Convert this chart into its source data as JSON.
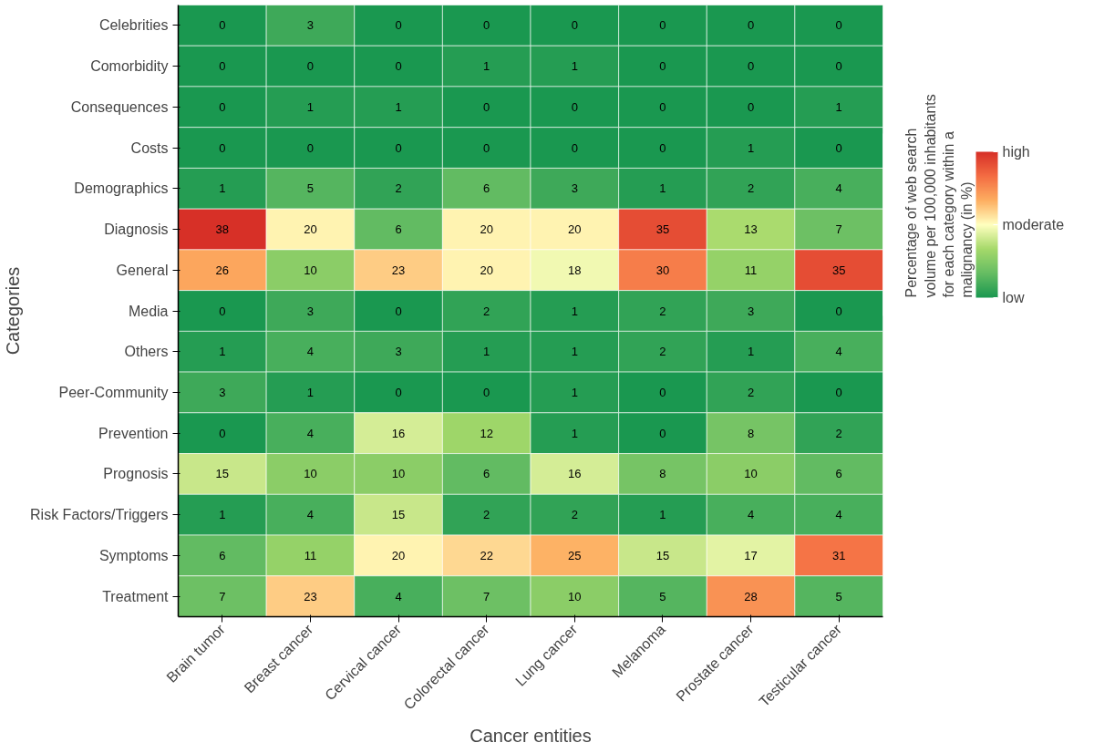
{
  "chart_data": {
    "type": "heatmap",
    "xlabel": "Cancer entities",
    "ylabel": "Categories",
    "clabel": "Percentage of web search volume per 100,000 inhabitants for each category within a malignancy (in %)",
    "categories": [
      "Brain tumor",
      "Breast cancer",
      "Cervical cancer",
      "Colorectal cancer",
      "Lung cancer",
      "Melanoma",
      "Prostate cancer",
      "Testicular cancer"
    ],
    "y_categories": [
      "Celebrities",
      "Comorbidity",
      "Consequences",
      "Costs",
      "Demographics",
      "Diagnosis",
      "General",
      "Media",
      "Others",
      "Peer-Community",
      "Prevention",
      "Prognosis",
      "Risk Factors/Triggers",
      "Symptoms",
      "Treatment"
    ],
    "cells": [
      [
        0,
        3,
        0,
        0,
        0,
        0,
        0,
        0
      ],
      [
        0,
        0,
        0,
        1,
        1,
        0,
        0,
        0
      ],
      [
        0,
        1,
        1,
        0,
        0,
        0,
        0,
        1
      ],
      [
        0,
        0,
        0,
        0,
        0,
        0,
        1,
        0
      ],
      [
        1,
        5,
        2,
        6,
        3,
        1,
        2,
        4
      ],
      [
        38,
        20,
        6,
        20,
        20,
        35,
        13,
        7
      ],
      [
        26,
        10,
        23,
        20,
        18,
        30,
        11,
        35
      ],
      [
        0,
        3,
        0,
        2,
        1,
        2,
        3,
        0
      ],
      [
        1,
        4,
        3,
        1,
        1,
        2,
        1,
        4
      ],
      [
        3,
        1,
        0,
        0,
        1,
        0,
        2,
        0
      ],
      [
        0,
        4,
        16,
        12,
        1,
        0,
        8,
        2
      ],
      [
        15,
        10,
        10,
        6,
        16,
        8,
        10,
        6
      ],
      [
        1,
        4,
        15,
        2,
        2,
        1,
        4,
        4
      ],
      [
        6,
        11,
        20,
        22,
        25,
        15,
        17,
        31
      ],
      [
        7,
        23,
        4,
        7,
        10,
        5,
        28,
        5
      ]
    ],
    "clim": [
      0,
      38
    ],
    "cticks": [
      {
        "value": 0,
        "label": "low"
      },
      {
        "value": 19,
        "label": "moderate"
      },
      {
        "value": 38,
        "label": "high"
      }
    ],
    "data_labels": true
  }
}
